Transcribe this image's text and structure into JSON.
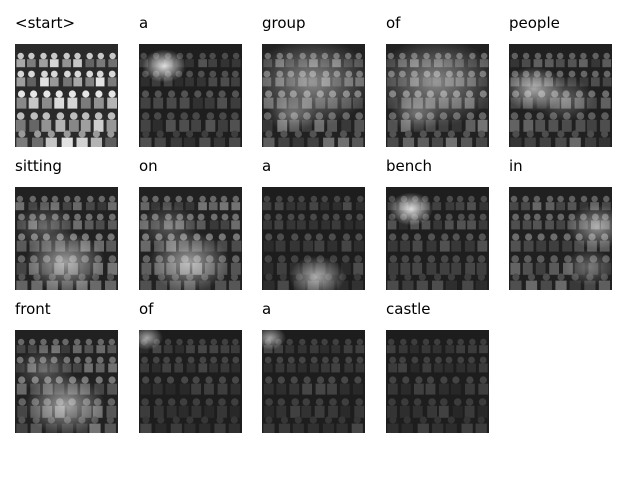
{
  "caption_tokens": [
    {
      "word": "<start>",
      "attention": null
    },
    {
      "word": "a",
      "attention": "upper-left"
    },
    {
      "word": "group",
      "attention": "middle-band"
    },
    {
      "word": "of",
      "attention": "middle-band"
    },
    {
      "word": "people",
      "attention": "left-middle"
    },
    {
      "word": "sitting",
      "attention": "lower-middle"
    },
    {
      "word": "on",
      "attention": "lower-middle"
    },
    {
      "word": "a",
      "attention": "bottom-center"
    },
    {
      "word": "bench",
      "attention": "upper-left"
    },
    {
      "word": "in",
      "attention": "right-side"
    },
    {
      "word": "front",
      "attention": "lower-middle"
    },
    {
      "word": "of",
      "attention": "top-left-corner"
    },
    {
      "word": "a",
      "attention": "top-left-corner"
    },
    {
      "word": "castle",
      "attention": "faint"
    }
  ],
  "colors": {
    "background": "#ffffff",
    "text": "#000000",
    "attention_highlight": "#ffffff",
    "image_dark": "#1a1a1a"
  }
}
